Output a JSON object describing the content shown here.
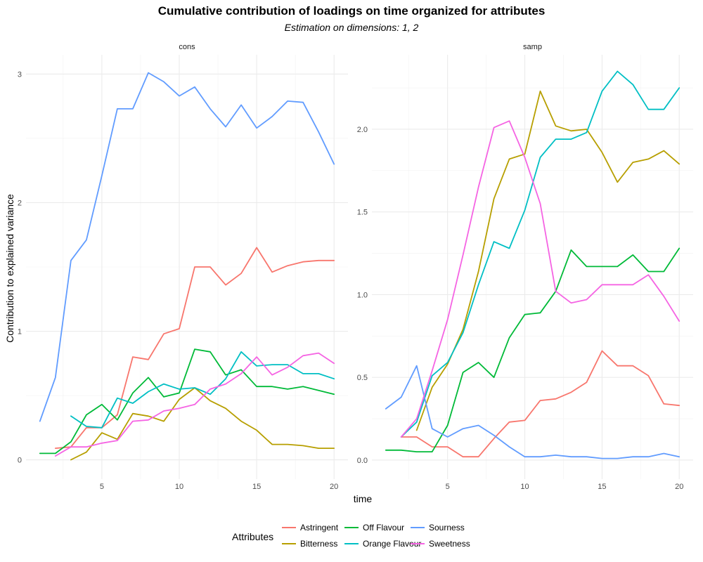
{
  "chart_data": {
    "type": "line",
    "title": "Cumulative contribution of loadings on time organized for attributes",
    "subtitle": "Estimation on dimensions: 1, 2",
    "xlabel": "time",
    "ylabel": "Contribution to explained variance",
    "legend_title": "Attributes",
    "legend_position": "bottom",
    "grid": true,
    "colors": {
      "Astringent": "#F8766D",
      "Bitterness": "#B79F00",
      "Off Flavour": "#00BA38",
      "Orange Flavour": "#00BFC4",
      "Sourness": "#619CFF",
      "Sweetness": "#F564E3"
    },
    "legend_layout": [
      [
        "Astringent",
        "Bitterness"
      ],
      [
        "Off Flavour",
        "Orange Flavour"
      ],
      [
        "Sourness",
        "Sweetness"
      ]
    ],
    "panels": [
      {
        "name": "cons",
        "xlim": [
          0.1,
          20.9
        ],
        "ylim": [
          -0.15,
          3.15
        ],
        "xticks": [
          5,
          10,
          15,
          20
        ],
        "yticks": [
          0,
          1,
          2,
          3
        ],
        "ytick_labels": [
          "0",
          "1",
          "2",
          "3"
        ],
        "series": [
          {
            "name": "Astringent",
            "x": [
              2,
              3,
              4,
              5,
              6,
              7,
              8,
              9,
              10,
              11,
              12,
              13,
              14,
              15,
              16,
              17,
              18,
              19,
              20
            ],
            "values": [
              0.09,
              0.1,
              0.25,
              0.25,
              0.35,
              0.8,
              0.78,
              0.98,
              1.02,
              1.5,
              1.5,
              1.36,
              1.45,
              1.65,
              1.46,
              1.51,
              1.54,
              1.55,
              1.55
            ]
          },
          {
            "name": "Bitterness",
            "x": [
              3,
              4,
              5,
              6,
              7,
              8,
              9,
              10,
              11,
              12,
              13,
              14,
              15,
              16,
              17,
              18,
              19,
              20
            ],
            "values": [
              0.0,
              0.06,
              0.21,
              0.16,
              0.36,
              0.34,
              0.3,
              0.47,
              0.56,
              0.46,
              0.4,
              0.3,
              0.23,
              0.12,
              0.12,
              0.11,
              0.09,
              0.09
            ]
          },
          {
            "name": "Off Flavour",
            "x": [
              1,
              2,
              3,
              4,
              5,
              6,
              7,
              8,
              9,
              10,
              11,
              12,
              13,
              14,
              15,
              16,
              17,
              18,
              19,
              20
            ],
            "values": [
              0.05,
              0.05,
              0.14,
              0.35,
              0.43,
              0.31,
              0.52,
              0.64,
              0.49,
              0.52,
              0.86,
              0.84,
              0.66,
              0.7,
              0.57,
              0.57,
              0.55,
              0.57,
              0.54,
              0.51
            ]
          },
          {
            "name": "Orange Flavour",
            "x": [
              3,
              4,
              5,
              6,
              7,
              8,
              9,
              10,
              11,
              12,
              13,
              14,
              15,
              16,
              17,
              18,
              19,
              20
            ],
            "values": [
              0.34,
              0.26,
              0.25,
              0.48,
              0.44,
              0.53,
              0.59,
              0.55,
              0.56,
              0.51,
              0.63,
              0.84,
              0.73,
              0.74,
              0.74,
              0.67,
              0.67,
              0.63
            ]
          },
          {
            "name": "Sourness",
            "x": [
              1,
              2,
              3,
              4,
              5,
              6,
              7,
              8,
              9,
              10,
              11,
              12,
              13,
              14,
              15,
              16,
              17,
              18,
              19,
              20
            ],
            "values": [
              0.3,
              0.64,
              1.55,
              1.71,
              2.21,
              2.73,
              2.73,
              3.01,
              2.94,
              2.83,
              2.9,
              2.73,
              2.59,
              2.76,
              2.58,
              2.67,
              2.79,
              2.78,
              2.55,
              2.3
            ]
          },
          {
            "name": "Sweetness",
            "x": [
              2,
              3,
              4,
              5,
              6,
              7,
              8,
              9,
              10,
              11,
              12,
              13,
              14,
              15,
              16,
              17,
              18,
              19,
              20
            ],
            "values": [
              0.03,
              0.1,
              0.1,
              0.13,
              0.15,
              0.3,
              0.31,
              0.38,
              0.4,
              0.43,
              0.55,
              0.59,
              0.67,
              0.8,
              0.66,
              0.72,
              0.81,
              0.83,
              0.75
            ]
          }
        ]
      },
      {
        "name": "samp",
        "xlim": [
          0.1,
          20.9
        ],
        "ylim": [
          -0.115,
          2.45
        ],
        "xticks": [
          5,
          10,
          15,
          20
        ],
        "yticks": [
          0.0,
          0.5,
          1.0,
          1.5,
          2.0
        ],
        "ytick_labels": [
          "0.0",
          "0.5",
          "1.0",
          "1.5",
          "2.0"
        ],
        "series": [
          {
            "name": "Astringent",
            "x": [
              2,
              3,
              4,
              5,
              6,
              7,
              8,
              9,
              10,
              11,
              12,
              13,
              14,
              15,
              16,
              17,
              18,
              19,
              20
            ],
            "values": [
              0.14,
              0.14,
              0.08,
              0.08,
              0.02,
              0.02,
              0.13,
              0.23,
              0.24,
              0.36,
              0.37,
              0.41,
              0.47,
              0.66,
              0.57,
              0.57,
              0.51,
              0.34,
              0.33
            ]
          },
          {
            "name": "Bitterness",
            "x": [
              3,
              4,
              5,
              6,
              7,
              8,
              9,
              10,
              11,
              12,
              13,
              14,
              15,
              16,
              17,
              18,
              19,
              20
            ],
            "values": [
              0.18,
              0.44,
              0.58,
              0.79,
              1.14,
              1.58,
              1.82,
              1.85,
              2.23,
              2.02,
              1.99,
              2.0,
              1.86,
              1.68,
              1.8,
              1.82,
              1.87,
              1.79
            ]
          },
          {
            "name": "Off Flavour",
            "x": [
              1,
              2,
              3,
              4,
              5,
              6,
              7,
              8,
              9,
              10,
              11,
              12,
              13,
              14,
              15,
              16,
              17,
              18,
              19,
              20
            ],
            "values": [
              0.06,
              0.06,
              0.05,
              0.05,
              0.21,
              0.53,
              0.59,
              0.5,
              0.74,
              0.88,
              0.89,
              1.02,
              1.27,
              1.17,
              1.17,
              1.17,
              1.24,
              1.14,
              1.14,
              1.28
            ]
          },
          {
            "name": "Orange Flavour",
            "x": [
              2,
              3,
              4,
              5,
              6,
              7,
              8,
              9,
              10,
              11,
              12,
              13,
              14,
              15,
              16,
              17,
              18,
              19,
              20
            ],
            "values": [
              0.14,
              0.23,
              0.51,
              0.59,
              0.77,
              1.06,
              1.32,
              1.28,
              1.51,
              1.83,
              1.94,
              1.94,
              1.98,
              2.23,
              2.35,
              2.27,
              2.12,
              2.12,
              2.25
            ]
          },
          {
            "name": "Sourness",
            "x": [
              1,
              2,
              3,
              4,
              5,
              6,
              7,
              8,
              9,
              10,
              11,
              12,
              13,
              14,
              15,
              16,
              17,
              18,
              19,
              20
            ],
            "values": [
              0.31,
              0.38,
              0.57,
              0.19,
              0.14,
              0.19,
              0.21,
              0.15,
              0.08,
              0.02,
              0.02,
              0.03,
              0.02,
              0.02,
              0.01,
              0.01,
              0.02,
              0.02,
              0.04,
              0.02
            ]
          },
          {
            "name": "Sweetness",
            "x": [
              2,
              3,
              4,
              5,
              6,
              7,
              8,
              9,
              10,
              11,
              12,
              13,
              14,
              15,
              16,
              17,
              18,
              19,
              20
            ],
            "values": [
              0.14,
              0.25,
              0.54,
              0.85,
              1.24,
              1.65,
              2.01,
              2.05,
              1.83,
              1.55,
              1.02,
              0.95,
              0.97,
              1.06,
              1.06,
              1.06,
              1.12,
              0.99,
              0.84
            ]
          }
        ]
      }
    ]
  }
}
